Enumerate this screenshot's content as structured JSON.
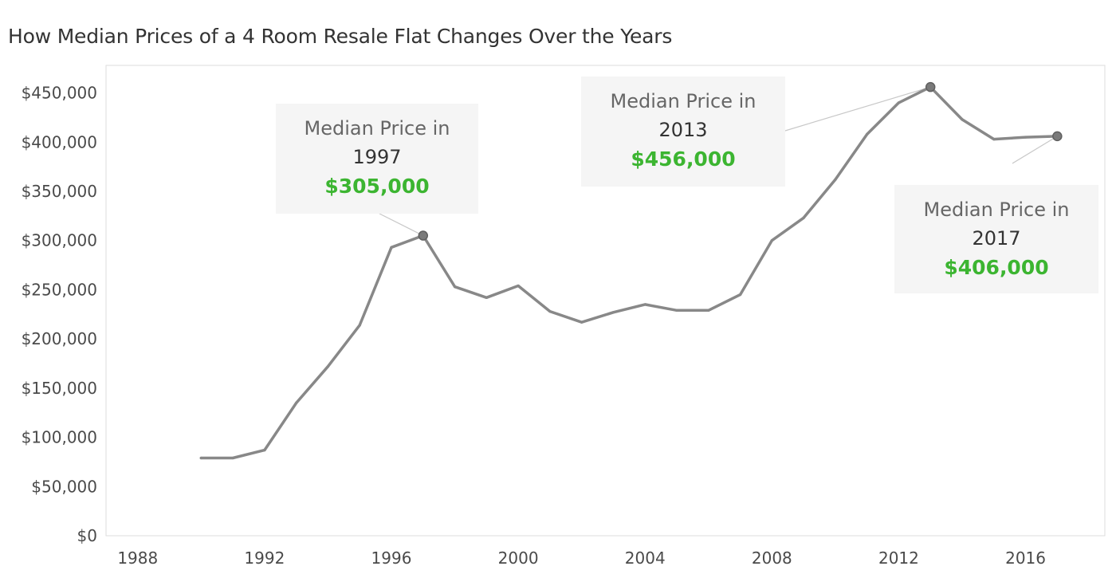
{
  "chart_data": {
    "type": "line",
    "title": "How Median Prices of a 4 Room Resale Flat Changes Over the Years",
    "xlabel": "",
    "ylabel": "",
    "xlim": [
      1987,
      2018.5
    ],
    "ylim": [
      0,
      478000
    ],
    "x_ticks": [
      1988,
      1992,
      1996,
      2000,
      2004,
      2008,
      2012,
      2016
    ],
    "x_tick_labels": [
      "1988",
      "1992",
      "1996",
      "2000",
      "2004",
      "2008",
      "2012",
      "2016"
    ],
    "y_ticks": [
      0,
      50000,
      100000,
      150000,
      200000,
      250000,
      300000,
      350000,
      400000,
      450000
    ],
    "y_tick_labels": [
      "$0",
      "$50,000",
      "$100,000",
      "$150,000",
      "$200,000",
      "$250,000",
      "$300,000",
      "$350,000",
      "$400,000",
      "$450,000"
    ],
    "grid": false,
    "series": [
      {
        "color": "#888888",
        "x": [
          1990,
          1991,
          1992,
          1993,
          1994,
          1995,
          1996,
          1997,
          1998,
          1999,
          2000,
          2001,
          2002,
          2003,
          2004,
          2005,
          2006,
          2007,
          2008,
          2009,
          2010,
          2011,
          2012,
          2013,
          2014,
          2015,
          2016,
          2017
        ],
        "values": [
          79000,
          79000,
          87000,
          135000,
          172000,
          214000,
          293000,
          305000,
          253000,
          242000,
          254000,
          228000,
          217000,
          227000,
          235000,
          229000,
          229000,
          245000,
          300000,
          323000,
          362000,
          408000,
          440000,
          456000,
          423000,
          403000,
          405000,
          406000
        ]
      }
    ],
    "annotations": [
      {
        "line1": "Median Price in",
        "year": "1997",
        "value": "$305,000",
        "point_x": 1997,
        "point_y": 305000
      },
      {
        "line1": "Median Price in",
        "year": "2013",
        "value": "$456,000",
        "point_x": 2013,
        "point_y": 456000
      },
      {
        "line1": "Median Price in",
        "year": "2017",
        "value": "$406,000",
        "point_x": 2017,
        "point_y": 406000
      }
    ],
    "colors": {
      "line": "#888888",
      "highlight_value": "#3cb531"
    }
  }
}
